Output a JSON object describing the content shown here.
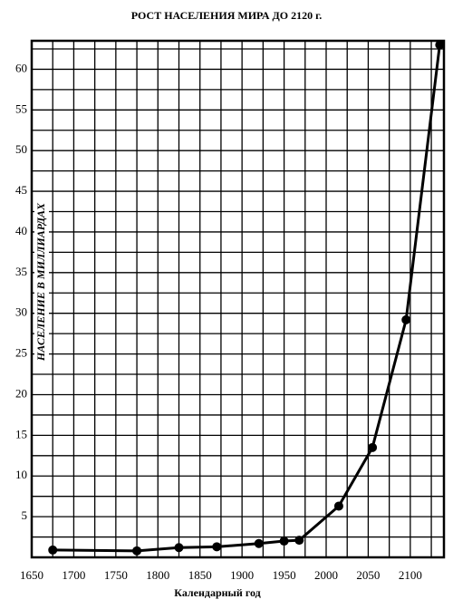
{
  "chart_data": {
    "type": "line",
    "title": "РОСТ НАСЕЛЕНИЯ МИРА ДО 2120 г.",
    "x_label": "Календарный год",
    "y_label": "НАСЕЛЕНИЕ В МИЛЛИАРДАХ",
    "x": [
      1675,
      1775,
      1825,
      1870,
      1920,
      1950,
      1968,
      2015,
      2055,
      2095,
      2135
    ],
    "series": [
      {
        "color": "#000000",
        "values": [
          0.9,
          0.8,
          1.2,
          1.3,
          1.7,
          2.0,
          2.1,
          6.3,
          13.5,
          29.2,
          63.0
        ]
      }
    ],
    "xlim": [
      1650,
      2140
    ],
    "xticks": [
      1650,
      1700,
      1750,
      1800,
      1850,
      1900,
      1950,
      2000,
      2050,
      2100
    ],
    "xminor": [
      1675,
      1725,
      1775,
      1825,
      1875,
      1925,
      1975,
      2025,
      2075,
      2125
    ],
    "ylim": [
      0,
      63.5
    ],
    "yticks": [
      5,
      10,
      15,
      20,
      25,
      30,
      35,
      40,
      45,
      50,
      55,
      60
    ],
    "yminor": [
      2.5,
      7.5,
      12.5,
      17.5,
      22.5,
      27.5,
      32.5,
      37.5,
      42.5,
      47.5,
      52.5,
      57.5,
      62.5
    ],
    "grid": true
  }
}
